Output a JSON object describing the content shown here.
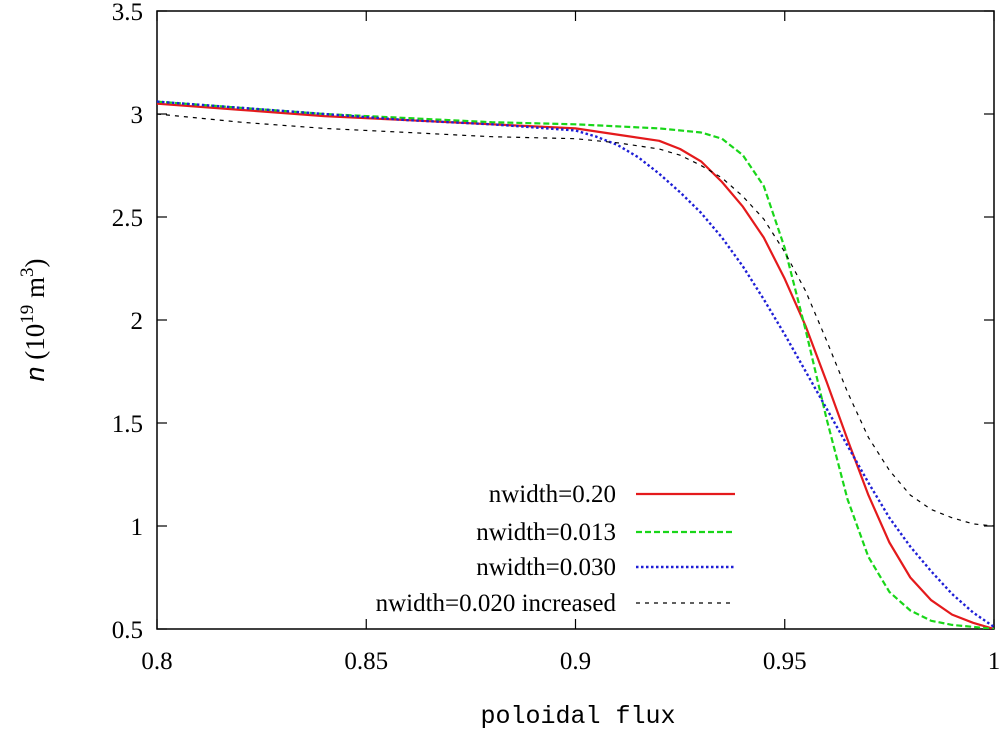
{
  "chart_data": {
    "type": "line",
    "xlabel": "poloidal flux",
    "ylabel": {
      "symbol": "n",
      "open": " (10",
      "exp1": "19",
      "mid": " m",
      "exp2": "3",
      "close": ")"
    },
    "xlim": [
      0.8,
      1.0
    ],
    "ylim": [
      0.5,
      3.5
    ],
    "xticks": [
      0.8,
      0.85,
      0.9,
      0.95,
      1.0
    ],
    "xtick_labels": [
      "0.8",
      "0.85",
      "0.9",
      "0.95",
      "1"
    ],
    "yticks": [
      0.5,
      1.0,
      1.5,
      2.0,
      2.5,
      3.0,
      3.5
    ],
    "ytick_labels": [
      "0.5",
      "1",
      "1.5",
      "2",
      "2.5",
      "3",
      "3.5"
    ],
    "grid": false,
    "legend_position": "bottom-right",
    "series": [
      {
        "name": "nwidth=0.20",
        "color": "#e41a1c",
        "dash": "solid",
        "x": [
          0.8,
          0.82,
          0.84,
          0.86,
          0.88,
          0.9,
          0.91,
          0.92,
          0.925,
          0.93,
          0.935,
          0.94,
          0.945,
          0.95,
          0.955,
          0.96,
          0.965,
          0.97,
          0.975,
          0.98,
          0.985,
          0.99,
          0.995,
          1.0
        ],
        "y": [
          3.05,
          3.02,
          2.99,
          2.97,
          2.95,
          2.93,
          2.9,
          2.87,
          2.83,
          2.77,
          2.67,
          2.55,
          2.4,
          2.2,
          1.97,
          1.7,
          1.42,
          1.15,
          0.92,
          0.75,
          0.64,
          0.57,
          0.53,
          0.5
        ]
      },
      {
        "name": "nwidth=0.013",
        "color": "#19d619",
        "dash": "dashed",
        "x": [
          0.8,
          0.82,
          0.84,
          0.86,
          0.88,
          0.9,
          0.92,
          0.93,
          0.935,
          0.94,
          0.945,
          0.95,
          0.955,
          0.96,
          0.965,
          0.97,
          0.975,
          0.98,
          0.985,
          0.99,
          0.995,
          1.0
        ],
        "y": [
          3.06,
          3.03,
          3.0,
          2.98,
          2.96,
          2.95,
          2.93,
          2.91,
          2.88,
          2.8,
          2.65,
          2.35,
          1.95,
          1.52,
          1.13,
          0.85,
          0.68,
          0.59,
          0.54,
          0.52,
          0.51,
          0.5
        ]
      },
      {
        "name": "nwidth=0.030",
        "color": "#1f1fd6",
        "dash": "dotted",
        "x": [
          0.8,
          0.82,
          0.84,
          0.86,
          0.88,
          0.9,
          0.905,
          0.91,
          0.915,
          0.92,
          0.925,
          0.93,
          0.935,
          0.94,
          0.945,
          0.95,
          0.955,
          0.96,
          0.965,
          0.97,
          0.975,
          0.98,
          0.985,
          0.99,
          0.995,
          1.0
        ],
        "y": [
          3.06,
          3.03,
          3.0,
          2.97,
          2.95,
          2.92,
          2.89,
          2.85,
          2.79,
          2.71,
          2.62,
          2.52,
          2.4,
          2.26,
          2.1,
          1.93,
          1.75,
          1.57,
          1.39,
          1.21,
          1.04,
          0.9,
          0.78,
          0.67,
          0.58,
          0.51
        ]
      },
      {
        "name": "nwidth=0.020 increased",
        "color": "#000000",
        "dash": "fine-dashed",
        "x": [
          0.8,
          0.82,
          0.84,
          0.86,
          0.88,
          0.9,
          0.91,
          0.92,
          0.925,
          0.93,
          0.935,
          0.94,
          0.945,
          0.95,
          0.955,
          0.96,
          0.965,
          0.97,
          0.975,
          0.98,
          0.985,
          0.99,
          0.995,
          1.0
        ],
        "y": [
          3.0,
          2.96,
          2.93,
          2.91,
          2.89,
          2.88,
          2.86,
          2.83,
          2.8,
          2.75,
          2.69,
          2.6,
          2.49,
          2.33,
          2.14,
          1.9,
          1.65,
          1.43,
          1.27,
          1.15,
          1.08,
          1.04,
          1.01,
          1.0
        ]
      }
    ]
  }
}
